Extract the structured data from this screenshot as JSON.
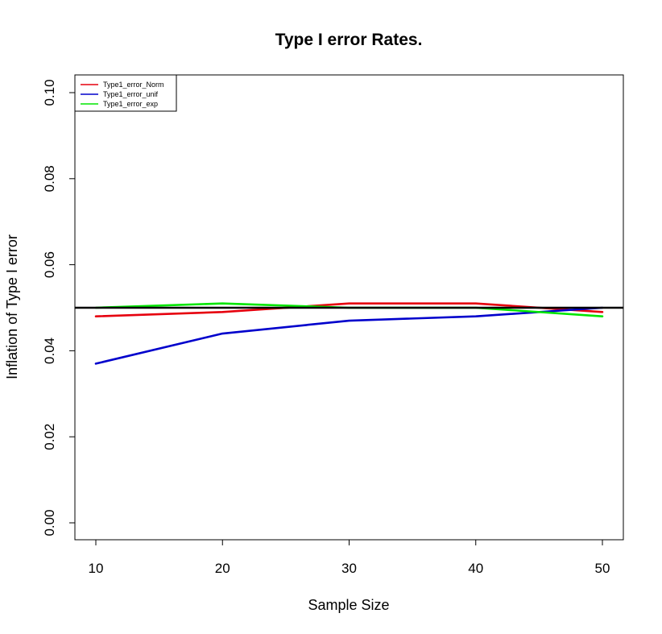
{
  "chart_data": {
    "type": "line",
    "title": "Type I error Rates.",
    "xlabel": "Sample Size",
    "ylabel": "Inflation of Type I error",
    "xlim": [
      10,
      50
    ],
    "ylim": [
      0,
      0.1
    ],
    "x_ticks": [
      10,
      20,
      30,
      40,
      50
    ],
    "x_tick_labels": [
      "10",
      "20",
      "30",
      "40",
      "50"
    ],
    "y_ticks": [
      0,
      0.02,
      0.04,
      0.06,
      0.08,
      0.1
    ],
    "y_tick_labels": [
      "0.00",
      "0.02",
      "0.04",
      "0.06",
      "0.08",
      "0.10"
    ],
    "grid": false,
    "legend_position": "top-left",
    "x": [
      10,
      20,
      30,
      40,
      50
    ],
    "series": [
      {
        "name": "Type1_error_Norm",
        "color": "#e6000e",
        "values": [
          0.048,
          0.049,
          0.051,
          0.051,
          0.049
        ]
      },
      {
        "name": "Type1_error_unif",
        "color": "#0000cc",
        "values": [
          0.037,
          0.044,
          0.047,
          0.048,
          0.05
        ]
      },
      {
        "name": "Type1_error_exp",
        "color": "#00e600",
        "values": [
          0.05,
          0.051,
          0.05,
          0.05,
          0.048
        ]
      }
    ],
    "reference_line": {
      "y": 0.05,
      "color": "#000000"
    }
  }
}
